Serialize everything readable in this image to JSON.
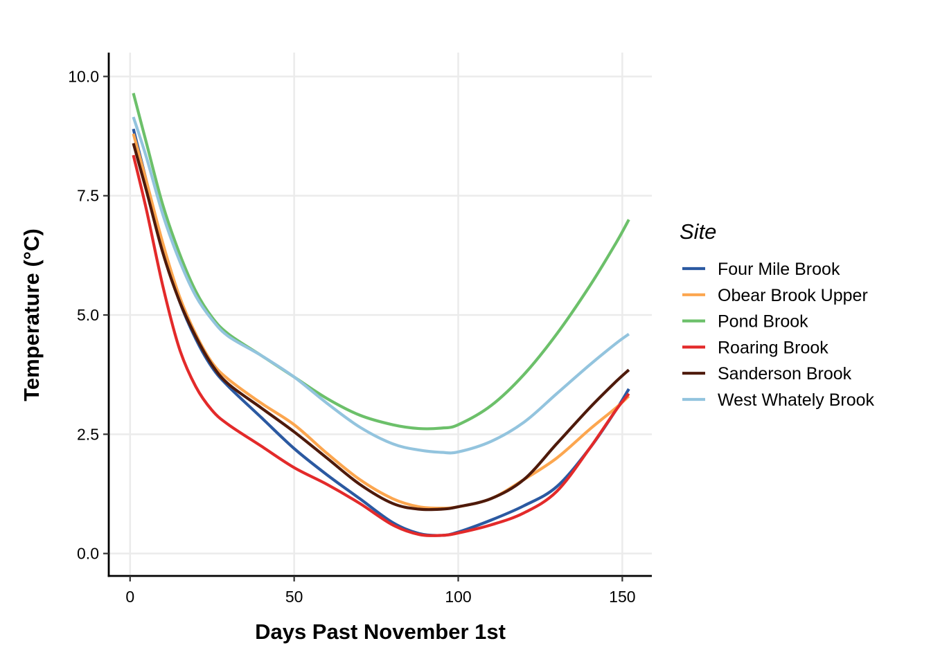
{
  "chart_data": {
    "type": "line",
    "title": "",
    "xlabel": "Days Past November 1st",
    "ylabel": "Temperature (°C)",
    "xlim": [
      -6.5,
      159
    ],
    "ylim": [
      -0.47,
      10.5
    ],
    "xticks": [
      0,
      50,
      100,
      150
    ],
    "xtick_labels": [
      "0",
      "50",
      "100",
      "150"
    ],
    "yticks": [
      0,
      2.5,
      5,
      7.5,
      10
    ],
    "ytick_labels": [
      "0.0",
      "2.5",
      "5.0",
      "7.5",
      "10.0"
    ],
    "grid": true,
    "legend": {
      "title": "Site",
      "position": "right"
    },
    "series": [
      {
        "name": "Four Mile Brook",
        "color": "#2b59a1",
        "x": [
          1,
          5,
          10,
          15,
          20,
          25,
          30,
          40,
          50,
          60,
          70,
          80,
          88,
          95,
          100,
          110,
          120,
          130,
          140,
          148,
          152
        ],
        "y": [
          8.9,
          7.8,
          6.4,
          5.3,
          4.5,
          3.9,
          3.5,
          2.85,
          2.2,
          1.65,
          1.15,
          0.65,
          0.42,
          0.38,
          0.45,
          0.7,
          1.0,
          1.4,
          2.2,
          3.0,
          3.45
        ]
      },
      {
        "name": "Obear Brook Upper",
        "color": "#fca64f",
        "x": [
          1,
          5,
          10,
          15,
          20,
          25,
          30,
          40,
          50,
          60,
          70,
          80,
          88,
          95,
          100,
          110,
          120,
          130,
          140,
          148,
          152
        ],
        "y": [
          8.8,
          7.8,
          6.5,
          5.4,
          4.6,
          4.0,
          3.65,
          3.15,
          2.7,
          2.1,
          1.55,
          1.15,
          0.98,
          0.95,
          0.98,
          1.15,
          1.55,
          2.0,
          2.6,
          3.05,
          3.3
        ]
      },
      {
        "name": "Pond Brook",
        "color": "#6cc06a",
        "x": [
          1,
          5,
          10,
          15,
          20,
          25,
          30,
          40,
          50,
          60,
          70,
          80,
          88,
          95,
          100,
          110,
          120,
          130,
          140,
          148,
          152
        ],
        "y": [
          9.65,
          8.6,
          7.3,
          6.3,
          5.5,
          4.95,
          4.6,
          4.15,
          3.7,
          3.25,
          2.9,
          2.7,
          2.62,
          2.63,
          2.7,
          3.1,
          3.75,
          4.6,
          5.6,
          6.5,
          7.0
        ]
      },
      {
        "name": "Roaring Brook",
        "color": "#e32a2a",
        "x": [
          1,
          5,
          10,
          15,
          20,
          25,
          30,
          40,
          50,
          60,
          70,
          80,
          88,
          95,
          100,
          110,
          120,
          130,
          140,
          148,
          152
        ],
        "y": [
          8.35,
          7.2,
          5.6,
          4.3,
          3.5,
          3.0,
          2.7,
          2.25,
          1.8,
          1.45,
          1.05,
          0.6,
          0.4,
          0.38,
          0.43,
          0.6,
          0.85,
          1.3,
          2.2,
          3.0,
          3.35
        ]
      },
      {
        "name": "Sanderson Brook",
        "color": "#4e1a0b",
        "x": [
          1,
          5,
          10,
          15,
          20,
          25,
          30,
          40,
          50,
          60,
          70,
          80,
          88,
          95,
          100,
          110,
          120,
          130,
          140,
          148,
          152
        ],
        "y": [
          8.6,
          7.6,
          6.3,
          5.3,
          4.55,
          3.95,
          3.55,
          3.05,
          2.55,
          2.0,
          1.45,
          1.05,
          0.93,
          0.93,
          0.98,
          1.15,
          1.55,
          2.3,
          3.05,
          3.6,
          3.85
        ]
      },
      {
        "name": "West Whately Brook",
        "color": "#93c4de",
        "x": [
          1,
          5,
          10,
          15,
          20,
          25,
          30,
          40,
          50,
          60,
          70,
          80,
          88,
          95,
          100,
          110,
          120,
          130,
          140,
          148,
          152
        ],
        "y": [
          9.15,
          8.3,
          7.1,
          6.15,
          5.4,
          4.9,
          4.55,
          4.15,
          3.7,
          3.15,
          2.65,
          2.3,
          2.17,
          2.12,
          2.13,
          2.35,
          2.75,
          3.35,
          3.95,
          4.4,
          4.6
        ]
      }
    ]
  }
}
